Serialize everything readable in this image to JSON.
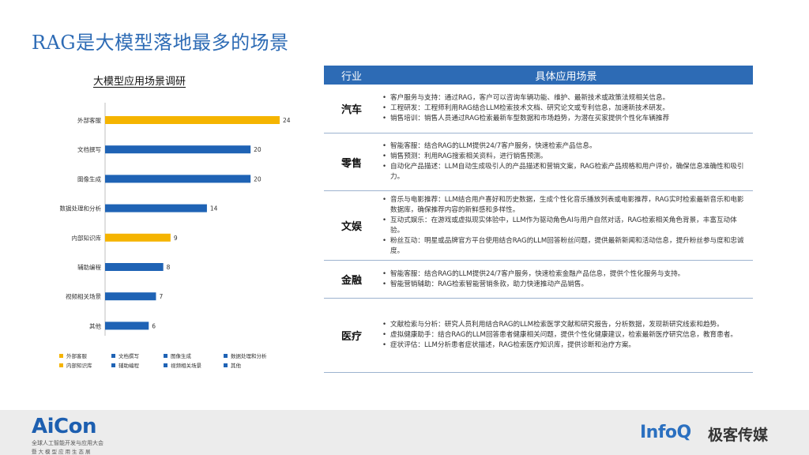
{
  "slide": {
    "title": "RAG是大模型落地最多的场景"
  },
  "chart_data": {
    "type": "bar",
    "title": "大模型应用场景调研",
    "orientation": "horizontal",
    "categories": [
      "外部客服",
      "文档撰写",
      "图像生成",
      "数据处理和分析",
      "内部知识库",
      "辅助编程",
      "视频相关场景",
      "其他"
    ],
    "values": [
      24,
      20,
      20,
      14,
      9,
      8,
      7,
      6
    ],
    "colors": [
      "#f5b400",
      "#1f63b5",
      "#1f63b5",
      "#1f63b5",
      "#f5b400",
      "#1f63b5",
      "#1f63b5",
      "#1f63b5"
    ],
    "xlim": [
      0,
      24
    ],
    "grid": false,
    "legend_position": "bottom",
    "legend": [
      {
        "label": "外部客服",
        "color": "#f5b400"
      },
      {
        "label": "文档撰写",
        "color": "#1f63b5"
      },
      {
        "label": "图像生成",
        "color": "#1f63b5"
      },
      {
        "label": "数据处理和分析",
        "color": "#1f63b5"
      },
      {
        "label": "内部知识库",
        "color": "#f5b400"
      },
      {
        "label": "辅助编程",
        "color": "#1f63b5"
      },
      {
        "label": "视频相关场景",
        "color": "#1f63b5"
      },
      {
        "label": "其他",
        "color": "#1f63b5"
      }
    ]
  },
  "table": {
    "headers": {
      "industry": "行业",
      "scenario": "具体应用场景"
    },
    "rows": [
      {
        "industry": "汽车",
        "items": [
          "客户服务与支持：通过RAG，客户可以咨询车辆功能、维护、最新技术或政策法规相关信息。",
          "工程研发：工程师利用RAG结合LLM检索技术文档、研究论文或专利信息，加速新技术研发。",
          "销售培训：销售人员通过RAG检索最新车型数据和市场趋势，为潜在买家提供个性化车辆推荐"
        ]
      },
      {
        "industry": "零售",
        "items": [
          "智能客服：结合RAG的LLM提供24/7客户服务，快速检索产品信息。",
          "销售预测：利用RAG搜索相关资料，进行销售预测。",
          "自动化产品描述：LLM自动生成吸引人的产品描述和营销文案，RAG检索产品规格和用户评价，确保信息准确性和吸引力。"
        ]
      },
      {
        "industry": "文娱",
        "items": [
          "音乐与电影推荐：LLM结合用户喜好和历史数据，生成个性化音乐播放列表或电影推荐，RAG实时检索最新音乐和电影数据库，确保推荐内容的新鲜感和多样性。",
          "互动式娱乐：在游戏或虚拟现实体验中，LLM作为驱动角色AI与用户自然对话，RAG检索相关角色背景，丰富互动体验。",
          "粉丝互动：明星或品牌官方平台使用结合RAG的LLM回答粉丝问题，提供最新新闻和活动信息，提升粉丝参与度和忠诚度。"
        ]
      },
      {
        "industry": "金融",
        "items": [
          "智能客服：结合RAG的LLM提供24/7客户服务，快速检索金融产品信息，提供个性化服务与支持。",
          "智能营销辅助：RAG检索智能营销条款，助力快速推动产品销售。"
        ]
      },
      {
        "industry": "医疗",
        "items": [
          "文献检索与分析：研究人员利用结合RAG的LLM检索医学文献和研究报告，分析数据，发现新研究线索和趋势。",
          "虚拟健康助手：结合RAG的LLM回答患者健康相关问题，提供个性化健康建议，检索最新医疗研究信息，教育患者。",
          "症状评估：LLM分析患者症状描述，RAG检索医疗知识库，提供诊断和治疗方案。"
        ]
      }
    ]
  },
  "footer": {
    "aicon_logo": "AiCon",
    "aicon_sub1": "全球人工智能开发与应用大会",
    "aicon_sub2": "暨大模型应用生态展",
    "infoq_logo": "InfoQ",
    "jike_logo": "极客传媒"
  }
}
